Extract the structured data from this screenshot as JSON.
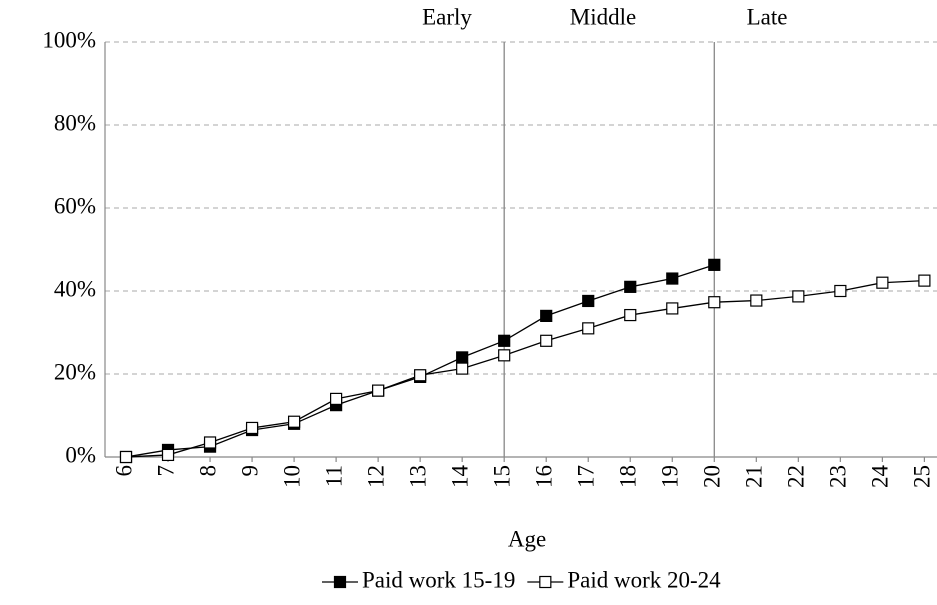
{
  "chart_data": {
    "type": "line",
    "x": [
      6,
      7,
      8,
      9,
      10,
      11,
      12,
      13,
      14,
      15,
      16,
      17,
      18,
      19,
      20,
      21,
      22,
      23,
      24,
      25
    ],
    "xlim": [
      5.5,
      25.3
    ],
    "xticks": [
      6,
      7,
      8,
      9,
      10,
      11,
      12,
      13,
      14,
      15,
      16,
      17,
      18,
      19,
      20,
      21,
      22,
      23,
      24,
      25
    ],
    "xlabel": "Age",
    "ylim": [
      0,
      100
    ],
    "yticks": [
      {
        "value": 0,
        "label": "0%"
      },
      {
        "value": 20,
        "label": "20%"
      },
      {
        "value": 40,
        "label": "40%"
      },
      {
        "value": 60,
        "label": "60%"
      },
      {
        "value": 80,
        "label": "80%"
      },
      {
        "value": 100,
        "label": "100%"
      }
    ],
    "grid": true,
    "vlines": [
      15,
      20
    ],
    "annotations": [
      "Early",
      "Middle",
      "Late"
    ],
    "legend": "bottom",
    "series": [
      {
        "name": "Paid work 15-19",
        "color": "#000000",
        "marker": "filled",
        "values": [
          0,
          1.7,
          2.5,
          6.5,
          8,
          12.5,
          16,
          19.3,
          24,
          28,
          34,
          37.6,
          41,
          43,
          46.3,
          null,
          null,
          null,
          null,
          null
        ]
      },
      {
        "name": "Paid work 20-24",
        "color": "#000000",
        "marker": "open",
        "values": [
          0,
          0.5,
          3.5,
          7,
          8.5,
          14,
          16,
          19.7,
          21.3,
          24.5,
          28,
          31,
          34.2,
          35.8,
          37.3,
          37.7,
          38.7,
          40,
          42,
          42.5
        ]
      }
    ]
  }
}
